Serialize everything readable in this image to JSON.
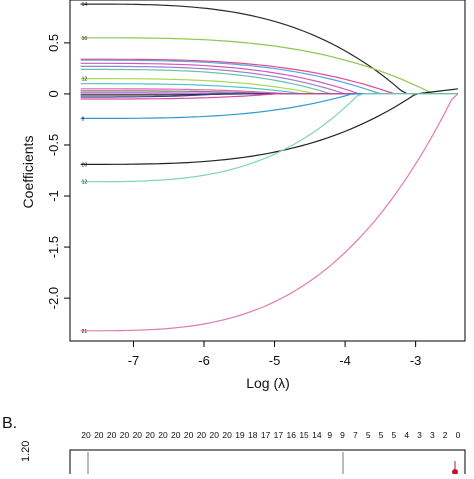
{
  "chart_data": [
    {
      "type": "line",
      "ylabel": "Coefficients",
      "xlabel": "Log (λ)",
      "xlim": [
        -7.9,
        -2.3
      ],
      "ylim": [
        -2.42,
        0.92
      ],
      "x_ticks": [
        "-7",
        "-6",
        "-5",
        "-4",
        "-3"
      ],
      "y_ticks": [
        "0.5",
        "0",
        "-0.5",
        "-1",
        "-1.5",
        "-2.0"
      ],
      "x_tick_values": [
        -7,
        -6,
        -5,
        -4,
        -3
      ],
      "y_tick_values": [
        0.5,
        0,
        -0.5,
        -1,
        -1.5,
        -2.0
      ],
      "series": [
        {
          "name": "14",
          "color": "#2b2b2b",
          "start": 0.88,
          "zero_at": -3.15
        },
        {
          "name": "16",
          "color": "#8cc84b",
          "start": 0.55,
          "zero_at": -2.75
        },
        {
          "name": "",
          "color": "#e34a8a",
          "start": 0.34,
          "zero_at": -3.3
        },
        {
          "name": "",
          "color": "#5aa3e6",
          "start": 0.33,
          "zero_at": -3.5
        },
        {
          "name": "",
          "color": "#d45ab8",
          "start": 0.3,
          "zero_at": -3.8
        },
        {
          "name": "",
          "color": "#9b7fd1",
          "start": 0.27,
          "zero_at": -4.0
        },
        {
          "name": "",
          "color": "#66c2a5",
          "start": 0.24,
          "zero_at": -4.2
        },
        {
          "name": "12",
          "color": "#a6d854",
          "start": 0.15,
          "zero_at": -4.4
        },
        {
          "name": "",
          "color": "#4fc3c8",
          "start": 0.1,
          "zero_at": -4.6
        },
        {
          "name": "",
          "color": "#e066b0",
          "start": 0.05,
          "zero_at": -4.8
        },
        {
          "name": "",
          "color": "#7a7a7a",
          "start": 0.03,
          "zero_at": -5.0
        },
        {
          "name": "",
          "color": "#b04fc9",
          "start": 0.01,
          "zero_at": -5.3
        },
        {
          "name": "",
          "color": "#1f1f1f",
          "start": -0.01,
          "zero_at": -5.5
        },
        {
          "name": "",
          "color": "#3c3c8c",
          "start": -0.03,
          "zero_at": -5.8
        },
        {
          "name": "",
          "color": "#d94fa0",
          "start": -0.05,
          "zero_at": -5.0
        },
        {
          "name": "8",
          "color": "#2f9ad1",
          "start": -0.24,
          "zero_at": -3.9
        },
        {
          "name": "20",
          "color": "#222222",
          "start": -0.69,
          "zero_at": -3.0,
          "end": 0.05
        },
        {
          "name": "12",
          "color": "#7fd3b6",
          "start": -0.86,
          "zero_at": -3.8
        },
        {
          "name": "21",
          "color": "#e07bb0",
          "start": -2.32,
          "zero_at": -2.45
        }
      ]
    },
    {
      "type": "line",
      "ylim_label": "1.20",
      "top_counts": [
        "20",
        "20",
        "20",
        "20",
        "20",
        "20",
        "20",
        "20",
        "20",
        "20",
        "20",
        "20",
        "19",
        "18",
        "17",
        "17",
        "16",
        "15",
        "14",
        "9",
        "9",
        "7",
        "5",
        "5",
        "5",
        "4",
        "3",
        "3",
        "2",
        "0"
      ]
    }
  ],
  "panel_label_b": "B."
}
